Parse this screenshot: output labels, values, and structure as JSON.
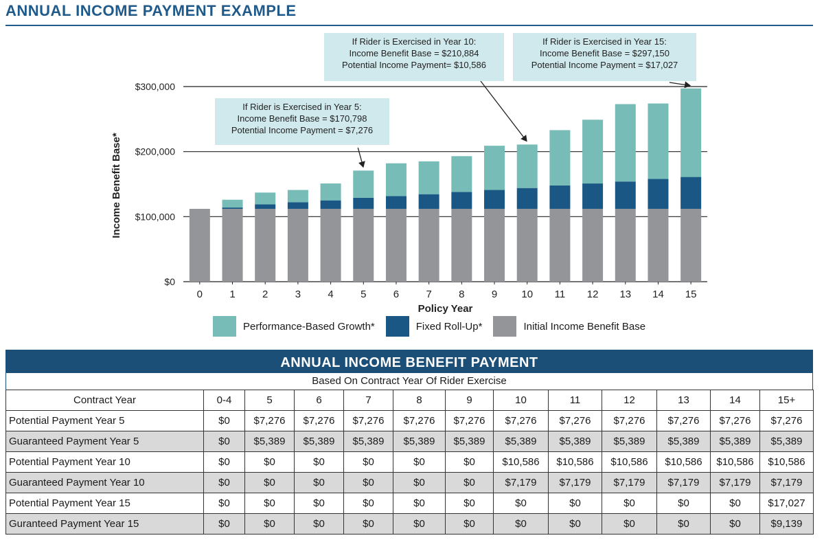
{
  "page_title": "ANNUAL INCOME PAYMENT EXAMPLE",
  "colors": {
    "performance": "#77bcb7",
    "fixed": "#1a5785",
    "initial": "#939598",
    "title": "#1f5a8a",
    "callout_bg": "#cfe9ec",
    "table_header": "#1b4f78"
  },
  "chart_data": {
    "type": "bar",
    "stacked": true,
    "xlabel": "Policy Year",
    "ylabel": "Income Benefit Base*",
    "ylim": [
      0,
      300000
    ],
    "yticks": [
      "$0",
      "$100,000",
      "$200,000",
      "$300,000"
    ],
    "ytick_values": [
      0,
      100000,
      200000,
      300000
    ],
    "grid": true,
    "categories": [
      "0",
      "1",
      "2",
      "3",
      "4",
      "5",
      "6",
      "7",
      "8",
      "9",
      "10",
      "11",
      "12",
      "13",
      "14",
      "15"
    ],
    "series": [
      {
        "name": "Initial Income Benefit Base",
        "color": "#939598",
        "values": [
          112000,
          112000,
          112000,
          112000,
          112000,
          112000,
          112000,
          112000,
          112000,
          112000,
          112000,
          112000,
          112000,
          112000,
          112000,
          112000
        ]
      },
      {
        "name": "Fixed Roll-Up*",
        "color": "#1a5785",
        "values": [
          0,
          2000,
          7000,
          10000,
          13000,
          17000,
          19500,
          22500,
          26000,
          29000,
          32000,
          36000,
          39000,
          42000,
          46000,
          49000
        ]
      },
      {
        "name": "Performance-Based Growth*",
        "color": "#77bcb7",
        "values": [
          0,
          12000,
          18000,
          19000,
          26000,
          41798,
          50500,
          50500,
          55000,
          68000,
          66884,
          85000,
          98000,
          119000,
          116000,
          136150
        ]
      }
    ],
    "legend_order": [
      "Performance-Based Growth*",
      "Fixed Roll-Up*",
      "Initial Income Benefit Base"
    ],
    "legend_position": "bottom",
    "annotations": [
      {
        "lines": [
          "If Rider is Exercised in Year 5:",
          "Income Benefit Base = $170,798",
          "Potential Income Payment = $7,276"
        ],
        "target_year": "5"
      },
      {
        "lines": [
          "If Rider is Exercised in Year 10:",
          "Income Benefit Base = $210,884",
          "Potential Income Payment= $10,586"
        ],
        "target_year": "10"
      },
      {
        "lines": [
          "If Rider is Exercised in Year 15:",
          "Income Benefit Base = $297,150",
          "Potential Income Payment = $17,027"
        ],
        "target_year": "15"
      }
    ]
  },
  "table": {
    "title": "ANNUAL INCOME BENEFIT PAYMENT",
    "subtitle": "Based On Contract Year Of Rider Exercise",
    "columns": [
      "Contract Year",
      "0-4",
      "5",
      "6",
      "7",
      "8",
      "9",
      "10",
      "11",
      "12",
      "13",
      "14",
      "15+"
    ],
    "rows": [
      {
        "label": "Potential Payment Year 5",
        "values": [
          "$0",
          "$7,276",
          "$7,276",
          "$7,276",
          "$7,276",
          "$7,276",
          "$7,276",
          "$7,276",
          "$7,276",
          "$7,276",
          "$7,276",
          "$7,276"
        ]
      },
      {
        "label": "Guaranteed Payment Year 5",
        "values": [
          "$0",
          "$5,389",
          "$5,389",
          "$5,389",
          "$5,389",
          "$5,389",
          "$5,389",
          "$5,389",
          "$5,389",
          "$5,389",
          "$5,389",
          "$5,389"
        ]
      },
      {
        "label": "Potential Payment Year 10",
        "values": [
          "$0",
          "$0",
          "$0",
          "$0",
          "$0",
          "$0",
          "$10,586",
          "$10,586",
          "$10,586",
          "$10,586",
          "$10,586",
          "$10,586"
        ]
      },
      {
        "label": "Guaranteed Payment Year 10",
        "values": [
          "$0",
          "$0",
          "$0",
          "$0",
          "$0",
          "$0",
          "$7,179",
          "$7,179",
          "$7,179",
          "$7,179",
          "$7,179",
          "$7,179"
        ]
      },
      {
        "label": "Potential Payment Year 15",
        "values": [
          "$0",
          "$0",
          "$0",
          "$0",
          "$0",
          "$0",
          "$0",
          "$0",
          "$0",
          "$0",
          "$0",
          "$17,027"
        ]
      },
      {
        "label": "Guranteed Payment Year 15",
        "values": [
          "$0",
          "$0",
          "$0",
          "$0",
          "$0",
          "$0",
          "$0",
          "$0",
          "$0",
          "$0",
          "$0",
          "$9,139"
        ]
      }
    ]
  }
}
